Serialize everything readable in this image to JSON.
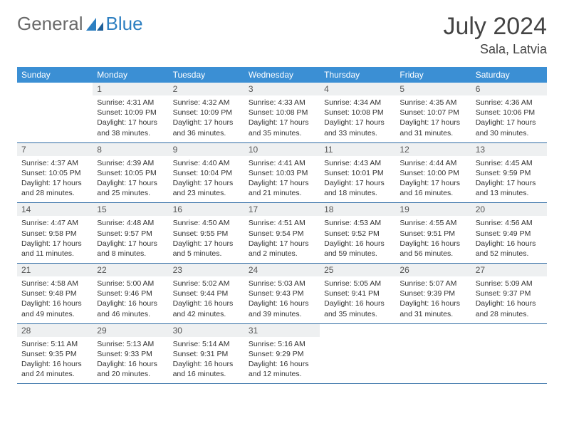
{
  "brand": {
    "name1": "General",
    "name2": "Blue"
  },
  "title": {
    "month": "July 2024",
    "location": "Sala, Latvia"
  },
  "colors": {
    "header_bg": "#3b8fd4",
    "header_text": "#ffffff",
    "daynum_bg": "#eef0f1",
    "row_border": "#2d6aa3",
    "brand_gray": "#6a6a6a",
    "brand_blue": "#2d7fc1"
  },
  "weekdays": [
    "Sunday",
    "Monday",
    "Tuesday",
    "Wednesday",
    "Thursday",
    "Friday",
    "Saturday"
  ],
  "start_offset": 1,
  "days": [
    {
      "n": 1,
      "sr": "4:31 AM",
      "ss": "10:09 PM",
      "dl": "17 hours and 38 minutes."
    },
    {
      "n": 2,
      "sr": "4:32 AM",
      "ss": "10:09 PM",
      "dl": "17 hours and 36 minutes."
    },
    {
      "n": 3,
      "sr": "4:33 AM",
      "ss": "10:08 PM",
      "dl": "17 hours and 35 minutes."
    },
    {
      "n": 4,
      "sr": "4:34 AM",
      "ss": "10:08 PM",
      "dl": "17 hours and 33 minutes."
    },
    {
      "n": 5,
      "sr": "4:35 AM",
      "ss": "10:07 PM",
      "dl": "17 hours and 31 minutes."
    },
    {
      "n": 6,
      "sr": "4:36 AM",
      "ss": "10:06 PM",
      "dl": "17 hours and 30 minutes."
    },
    {
      "n": 7,
      "sr": "4:37 AM",
      "ss": "10:05 PM",
      "dl": "17 hours and 28 minutes."
    },
    {
      "n": 8,
      "sr": "4:39 AM",
      "ss": "10:05 PM",
      "dl": "17 hours and 25 minutes."
    },
    {
      "n": 9,
      "sr": "4:40 AM",
      "ss": "10:04 PM",
      "dl": "17 hours and 23 minutes."
    },
    {
      "n": 10,
      "sr": "4:41 AM",
      "ss": "10:03 PM",
      "dl": "17 hours and 21 minutes."
    },
    {
      "n": 11,
      "sr": "4:43 AM",
      "ss": "10:01 PM",
      "dl": "17 hours and 18 minutes."
    },
    {
      "n": 12,
      "sr": "4:44 AM",
      "ss": "10:00 PM",
      "dl": "17 hours and 16 minutes."
    },
    {
      "n": 13,
      "sr": "4:45 AM",
      "ss": "9:59 PM",
      "dl": "17 hours and 13 minutes."
    },
    {
      "n": 14,
      "sr": "4:47 AM",
      "ss": "9:58 PM",
      "dl": "17 hours and 11 minutes."
    },
    {
      "n": 15,
      "sr": "4:48 AM",
      "ss": "9:57 PM",
      "dl": "17 hours and 8 minutes."
    },
    {
      "n": 16,
      "sr": "4:50 AM",
      "ss": "9:55 PM",
      "dl": "17 hours and 5 minutes."
    },
    {
      "n": 17,
      "sr": "4:51 AM",
      "ss": "9:54 PM",
      "dl": "17 hours and 2 minutes."
    },
    {
      "n": 18,
      "sr": "4:53 AM",
      "ss": "9:52 PM",
      "dl": "16 hours and 59 minutes."
    },
    {
      "n": 19,
      "sr": "4:55 AM",
      "ss": "9:51 PM",
      "dl": "16 hours and 56 minutes."
    },
    {
      "n": 20,
      "sr": "4:56 AM",
      "ss": "9:49 PM",
      "dl": "16 hours and 52 minutes."
    },
    {
      "n": 21,
      "sr": "4:58 AM",
      "ss": "9:48 PM",
      "dl": "16 hours and 49 minutes."
    },
    {
      "n": 22,
      "sr": "5:00 AM",
      "ss": "9:46 PM",
      "dl": "16 hours and 46 minutes."
    },
    {
      "n": 23,
      "sr": "5:02 AM",
      "ss": "9:44 PM",
      "dl": "16 hours and 42 minutes."
    },
    {
      "n": 24,
      "sr": "5:03 AM",
      "ss": "9:43 PM",
      "dl": "16 hours and 39 minutes."
    },
    {
      "n": 25,
      "sr": "5:05 AM",
      "ss": "9:41 PM",
      "dl": "16 hours and 35 minutes."
    },
    {
      "n": 26,
      "sr": "5:07 AM",
      "ss": "9:39 PM",
      "dl": "16 hours and 31 minutes."
    },
    {
      "n": 27,
      "sr": "5:09 AM",
      "ss": "9:37 PM",
      "dl": "16 hours and 28 minutes."
    },
    {
      "n": 28,
      "sr": "5:11 AM",
      "ss": "9:35 PM",
      "dl": "16 hours and 24 minutes."
    },
    {
      "n": 29,
      "sr": "5:13 AM",
      "ss": "9:33 PM",
      "dl": "16 hours and 20 minutes."
    },
    {
      "n": 30,
      "sr": "5:14 AM",
      "ss": "9:31 PM",
      "dl": "16 hours and 16 minutes."
    },
    {
      "n": 31,
      "sr": "5:16 AM",
      "ss": "9:29 PM",
      "dl": "16 hours and 12 minutes."
    }
  ],
  "labels": {
    "sunrise": "Sunrise:",
    "sunset": "Sunset:",
    "daylight": "Daylight:"
  }
}
